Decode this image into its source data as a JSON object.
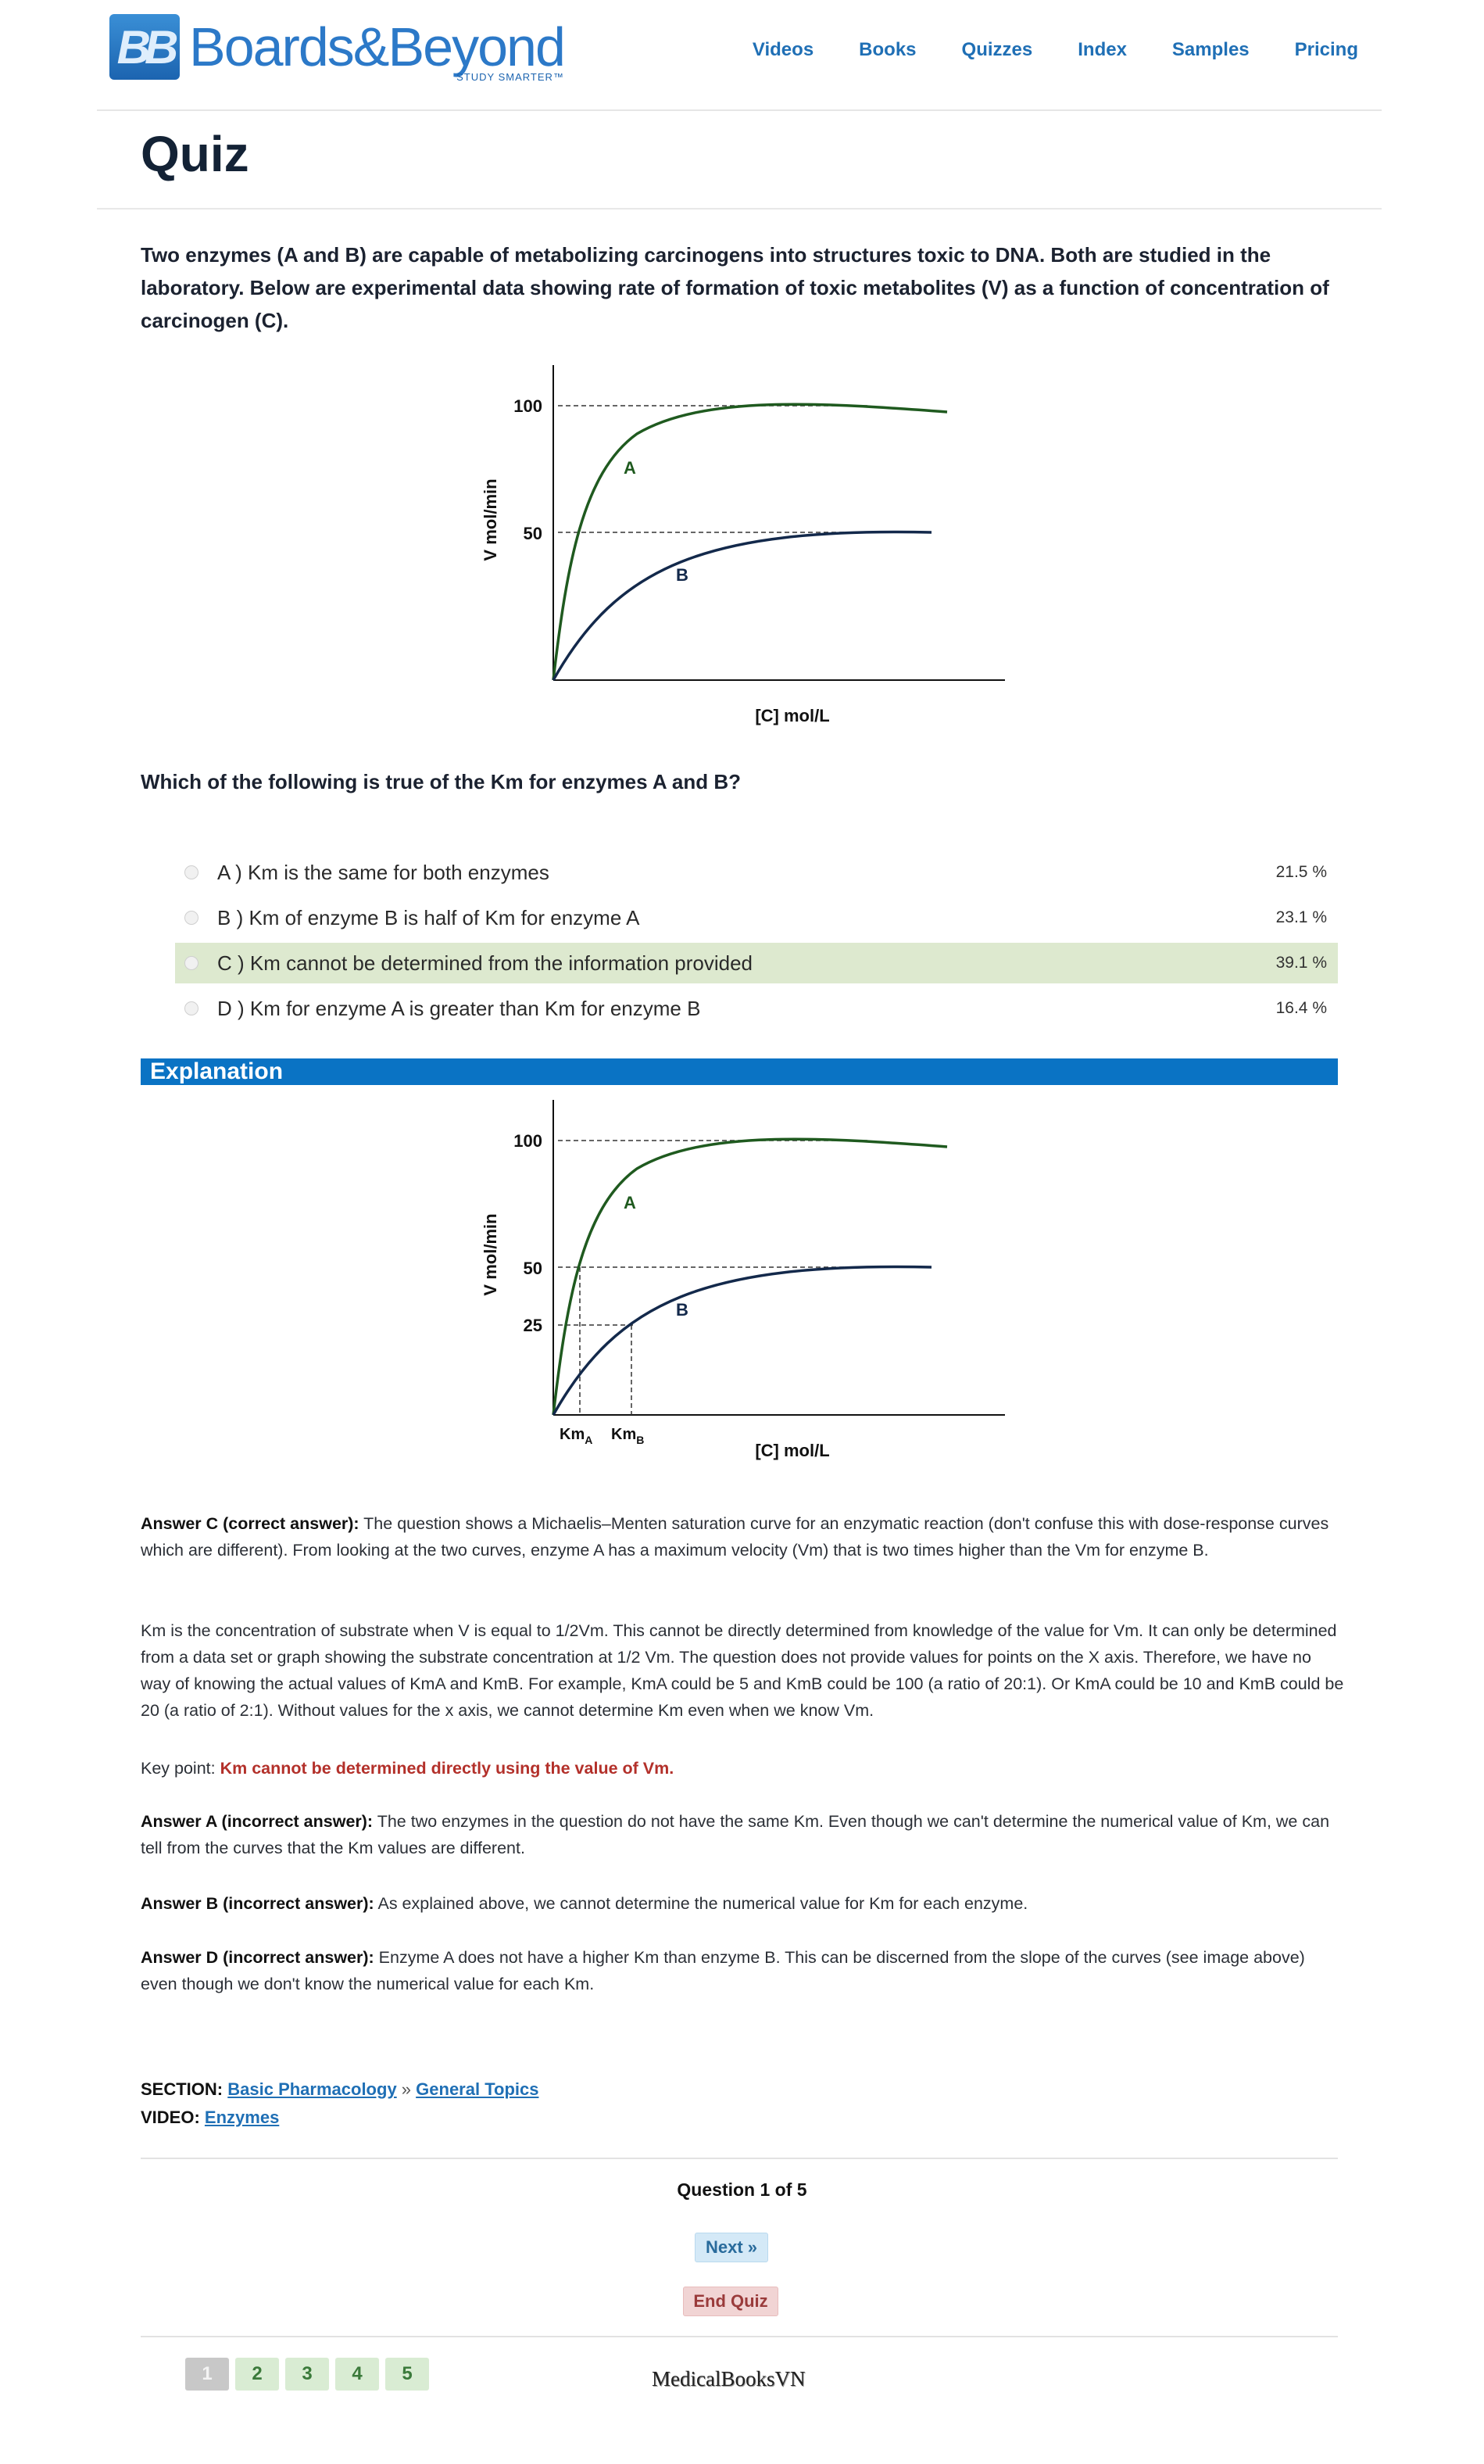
{
  "brand": {
    "name": "Boards&Beyond",
    "tagline": "STUDY SMARTER™",
    "mark": "BB"
  },
  "nav": [
    "Videos",
    "Books",
    "Quizzes",
    "Index",
    "Samples",
    "Pricing"
  ],
  "page": {
    "title": "Quiz"
  },
  "question": {
    "stem": "Two enzymes (A and B) are capable of metabolizing carcinogens into structures toxic to DNA. Both are studied in the laboratory. Below are experimental data showing rate of formation of toxic metabolites (V) as a function of concentration of carcinogen (C).",
    "prompt": "Which of the following is true of the Km for enzymes A and B?",
    "options": [
      {
        "label": "A ) Km is the same for both enzymes",
        "pct": "21.5 %"
      },
      {
        "label": "B ) Km of enzyme B is half of Km for enzyme A",
        "pct": "23.1 %"
      },
      {
        "label": "C ) Km cannot be determined from the information provided",
        "pct": "39.1 %"
      },
      {
        "label": "D ) Km for enzyme A is greater than Km for enzyme B",
        "pct": "16.4 %"
      }
    ],
    "selected_index": 2
  },
  "graph": {
    "ylabel": "V mol/min",
    "xlabel": "[C] mol/L",
    "tick_100": "100",
    "tick_50": "50",
    "tick_25": "25",
    "label_a": "A",
    "label_b": "B",
    "km_a": "Km",
    "km_a_sub": "A",
    "km_b": "Km",
    "km_b_sub": "B",
    "color_a": "#1f5a1f",
    "color_b": "#13294b"
  },
  "explanation": {
    "header": "Explanation",
    "p1_bold": "Answer C (correct answer):",
    "p1": " The question shows a Michaelis–Menten saturation curve for an enzymatic reaction (don't confuse this with dose-response curves which are different). From looking at the two curves, enzyme A has a maximum velocity (Vm) that is two times higher than the Vm for enzyme B.",
    "p2": "Km is the concentration of substrate when V is equal to 1/2Vm. This cannot be directly determined from knowledge of the value for Vm. It can only be determined from a data set or graph showing the substrate concentration at 1/2 Vm. The question does not provide values for points on the X axis. Therefore, we have no way of knowing the actual values of KmA and KmB. For example, KmA could be 5 and KmB could be 100 (a ratio of 20:1). Or KmA could be 10 and KmB could be 20 (a ratio of 2:1). Without values for the x axis, we cannot determine Km even when we know Vm.",
    "key_prefix": "Key point: ",
    "key_point": "Km cannot be determined directly using the value of Vm.",
    "a_bold": "Answer A (incorrect answer):",
    "a": " The two enzymes in the question do not have the same Km. Even though we can't determine the numerical value of Km, we can tell from the curves that the Km values are different.",
    "b_bold": "Answer B (incorrect answer):",
    "b": " As explained above, we cannot determine the numerical value for Km for each enzyme.",
    "d_bold": "Answer D (incorrect answer):",
    "d": " Enzyme A does not have a higher Km than enzyme B. This can be discerned from the slope of the curves (see image above) even though we don't know the numerical value for each Km."
  },
  "meta": {
    "section_label": "SECTION:",
    "section_link1": "Basic Pharmacology",
    "section_sep": " » ",
    "section_link2": "General Topics",
    "video_label": "VIDEO:",
    "video_link": "Enzymes"
  },
  "footer": {
    "question_count": "Question 1 of 5",
    "next": "Next »",
    "end": "End Quiz",
    "pages": [
      "1",
      "2",
      "3",
      "4",
      "5"
    ],
    "watermark": "MedicalBooksVN"
  }
}
